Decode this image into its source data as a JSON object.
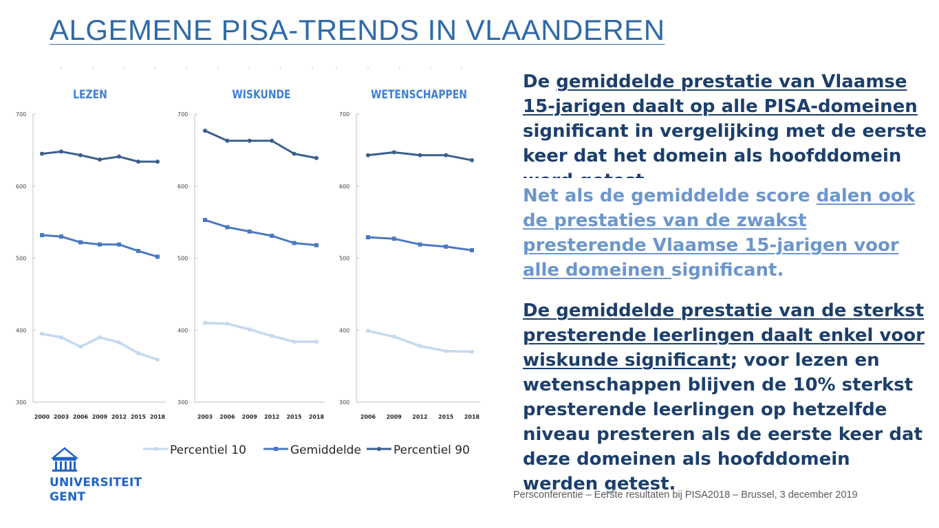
{
  "title": "ALGEMENE PISA-TRENDS IN VLAANDEREN",
  "text": {
    "p1": [
      {
        "t": "De ",
        "u": false
      },
      {
        "t": "gemiddelde prestatie van Vlaamse 15-jarigen daalt op alle PISA-domeinen ",
        "u": true
      },
      {
        "t": "significant in vergelijking met de eerste keer dat het domein als hoofddomein werd getest.",
        "u": false
      }
    ],
    "p2": [
      {
        "t": "Net als de gemiddelde score ",
        "u": false
      },
      {
        "t": "dalen ook de prestaties van de zwakst presterende Vlaamse 15-jarigen voor alle domeinen ",
        "u": true
      },
      {
        "t": "significant.",
        "u": false
      }
    ],
    "p3": [
      {
        "t": "De gemiddelde prestatie van de sterkst presterende leerlingen daalt enkel voor wiskunde significant",
        "u": true
      },
      {
        "t": "; voor lezen en wetenschappen blijven de 10% sterkst presterende leerlingen op hetzelfde niveau presteren als de eerste keer dat deze domeinen als hoofddomein werden getest.",
        "u": false
      }
    ]
  },
  "footer": "Persconferentie – Eerste resultaten bij PISA2018 – Brussel, 3 december 2019",
  "logo": {
    "line1": "UNIVERSITEIT",
    "line2": "GENT",
    "icon": "university-building-icon"
  },
  "colors": {
    "title": "#2e6aa8",
    "p10": "#c5d8ef",
    "mean": "#4a78c2",
    "p90": "#3a5f8c",
    "axis_label": "#3d7fd6"
  },
  "chart_data": {
    "type": "line",
    "ylim": [
      300,
      700
    ],
    "yticks": [
      300,
      400,
      500,
      600,
      700
    ],
    "legend": [
      {
        "name": "Percentiel 10",
        "key": "p10"
      },
      {
        "name": "Gemiddelde",
        "key": "mean"
      },
      {
        "name": "Percentiel 90",
        "key": "p90"
      }
    ],
    "panels": [
      {
        "title": "LEZEN",
        "categories": [
          "2000",
          "2003",
          "2006",
          "2009",
          "2012",
          "2015",
          "2018"
        ],
        "series": [
          {
            "name": "Percentiel 90",
            "key": "p90",
            "values": [
              645,
              648,
              643,
              637,
              641,
              634,
              634
            ]
          },
          {
            "name": "Gemiddelde",
            "key": "mean",
            "values": [
              532,
              530,
              522,
              519,
              519,
              510,
              502
            ]
          },
          {
            "name": "Percentiel 10",
            "key": "p10",
            "values": [
              395,
              390,
              377,
              390,
              383,
              368,
              359
            ]
          }
        ]
      },
      {
        "title": "WISKUNDE",
        "categories": [
          "2003",
          "2006",
          "2009",
          "2012",
          "2015",
          "2018"
        ],
        "series": [
          {
            "name": "Percentiel 90",
            "key": "p90",
            "values": [
              677,
              663,
              663,
              663,
              645,
              639
            ]
          },
          {
            "name": "Gemiddelde",
            "key": "mean",
            "values": [
              553,
              543,
              537,
              531,
              521,
              518
            ]
          },
          {
            "name": "Percentiel 10",
            "key": "p10",
            "values": [
              410,
              409,
              401,
              392,
              384,
              384
            ]
          }
        ]
      },
      {
        "title": "WETENSCHAPPEN",
        "categories": [
          "2006",
          "2009",
          "2012",
          "2015",
          "2018"
        ],
        "series": [
          {
            "name": "Percentiel 90",
            "key": "p90",
            "values": [
              643,
              647,
              643,
              643,
              636
            ]
          },
          {
            "name": "Gemiddelde",
            "key": "mean",
            "values": [
              529,
              527,
              519,
              516,
              511
            ]
          },
          {
            "name": "Percentiel 10",
            "key": "p10",
            "values": [
              399,
              391,
              378,
              371,
              370
            ]
          }
        ]
      }
    ]
  }
}
